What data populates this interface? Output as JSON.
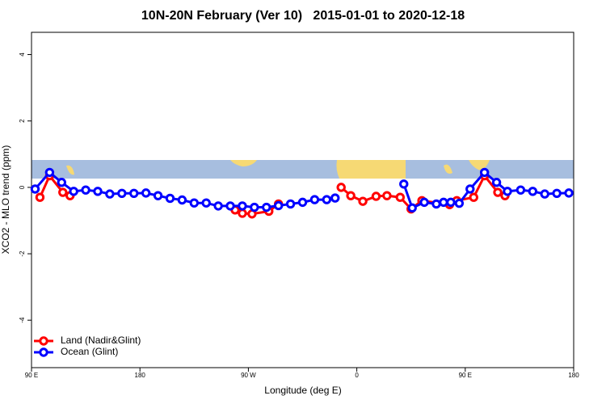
{
  "chart_data": {
    "type": "line",
    "title": "10N-20N February (Ver 10)   2015-01-01 to 2020-12-18",
    "x_label": "Longitude (deg E)",
    "y_label": "XCO2 - MLO trend (ppm)",
    "xlim": [
      90,
      540
    ],
    "xticks": [
      {
        "value": 90,
        "label": "90 E"
      },
      {
        "value": 180,
        "label": "180"
      },
      {
        "value": 270,
        "label": "90 W"
      },
      {
        "value": 360,
        "label": "0"
      },
      {
        "value": 450,
        "label": "90 E"
      },
      {
        "value": 540,
        "label": "180"
      }
    ],
    "ylim": [
      -5.43,
      4.67
    ],
    "yticks": [
      -4,
      -2,
      0,
      2,
      4
    ],
    "legend": "bottom-left",
    "series": [
      {
        "name": "Land (Nadir&Glint)",
        "color": "#ff0000",
        "x": [
          97,
          105,
          116,
          122,
          190,
          259,
          265,
          273,
          287,
          295,
          320,
          347,
          355,
          365,
          376,
          385,
          396,
          405,
          414,
          437,
          443,
          457,
          466,
          477,
          483
        ],
        "values": [
          -0.3,
          0.35,
          -0.15,
          -0.25,
          null,
          -0.68,
          -0.78,
          -0.8,
          -0.72,
          -0.5,
          null,
          0.0,
          -0.25,
          -0.42,
          -0.27,
          -0.25,
          -0.3,
          -0.65,
          -0.4,
          -0.52,
          -0.4,
          -0.3,
          0.35,
          -0.15,
          -0.25
        ]
      },
      {
        "name": "Ocean (Glint)",
        "color": "#0000ff",
        "x": [
          93,
          105,
          115,
          125,
          135,
          145,
          155,
          165,
          175,
          185,
          195,
          205,
          215,
          225,
          235,
          245,
          255,
          265,
          275,
          285,
          295,
          305,
          315,
          325,
          335,
          342,
          370,
          399,
          406,
          416,
          426,
          432,
          438,
          445,
          454,
          466,
          476,
          485,
          496,
          506,
          516,
          526,
          536
        ],
        "values": [
          -0.05,
          0.45,
          0.15,
          -0.12,
          -0.08,
          -0.12,
          -0.2,
          -0.18,
          -0.18,
          -0.17,
          -0.25,
          -0.33,
          -0.38,
          -0.47,
          -0.47,
          -0.56,
          -0.56,
          -0.56,
          -0.6,
          -0.6,
          -0.55,
          -0.5,
          -0.45,
          -0.37,
          -0.37,
          -0.32,
          null,
          0.1,
          -0.62,
          -0.45,
          -0.5,
          -0.45,
          -0.45,
          -0.48,
          -0.05,
          0.45,
          0.15,
          -0.12,
          -0.08,
          -0.12,
          -0.2,
          -0.18,
          -0.17
        ]
      }
    ]
  }
}
